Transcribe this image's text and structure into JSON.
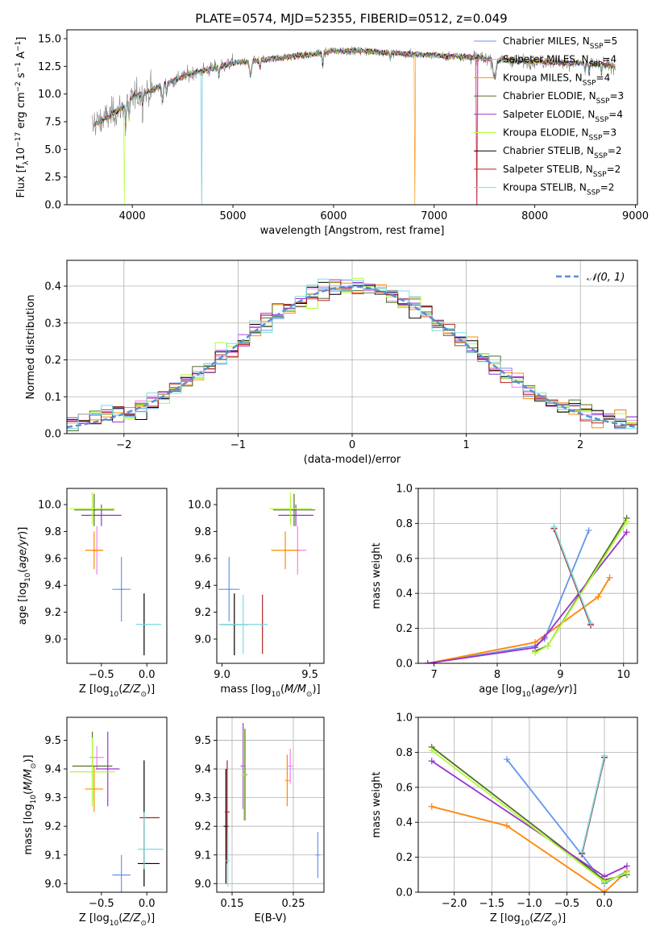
{
  "figure": {
    "suptitle": "PLATE=0574, MJD=52355, FIBERID=0512, z=0.049"
  },
  "colors": {
    "Chabrier MILES": "#6495ed",
    "Salpeter MILES": "#ee82ee",
    "Kroupa MILES": "#ff8c00",
    "Chabrier ELODIE": "#556b2f",
    "Salpeter ELODIE": "#9932cc",
    "Kroupa ELODIE": "#adff2f",
    "Chabrier STELIB": "#000000",
    "Salpeter STELIB": "#b22222",
    "Kroupa STELIB": "#7fdbe0",
    "data": "#808080",
    "grid": "#b0b0b0"
  },
  "chart_data": [
    {
      "id": "spectrum",
      "type": "line",
      "xlabel": "wavelength [Angstrom, rest frame]",
      "ylabel": "Flux [f_λ 10^-17 erg cm^-2 s^-1 A^-1]",
      "xlim": [
        3350,
        9020
      ],
      "ylim": [
        0,
        15.8
      ],
      "xticks": [
        4000,
        5000,
        6000,
        7000,
        8000,
        9000
      ],
      "yticks": [
        0.0,
        2.5,
        5.0,
        7.5,
        10.0,
        12.5,
        15.0
      ],
      "ytick_labels": [
        "0.0",
        "2.5",
        "5.0",
        "7.5",
        "10.0",
        "12.5",
        "15.0"
      ],
      "grid": false,
      "legend_position": "upper right",
      "data_range": [
        3600,
        8800
      ],
      "continuum_wavelength": [
        3600,
        3700,
        3800,
        3900,
        4000,
        4200,
        4400,
        4600,
        4800,
        5000,
        5200,
        5500,
        5800,
        6000,
        6300,
        6600,
        7000,
        7400,
        7800,
        8200,
        8600,
        8800
      ],
      "continuum_flux": [
        7.2,
        7.6,
        8.2,
        8.8,
        9.7,
        10.4,
        11.2,
        11.9,
        12.3,
        12.8,
        13.0,
        13.3,
        13.6,
        13.9,
        13.9,
        13.7,
        13.5,
        13.3,
        13.0,
        12.9,
        12.7,
        12.5
      ],
      "legend": [
        "Chabrier MILES, N_SSP=5",
        "Salpeter MILES, N_SSP=4",
        "Kroupa MILES, N_SSP=4",
        "Chabrier ELODIE, N_SSP=3",
        "Salpeter ELODIE, N_SSP=4",
        "Kroupa ELODIE, N_SSP=3",
        "Chabrier STELIB, N_SSP=2",
        "Salpeter STELIB, N_SSP=2",
        "Kroupa STELIB, N_SSP=2"
      ]
    },
    {
      "id": "residuals",
      "type": "histogram",
      "xlabel": "(data-model)/error",
      "ylabel": "Normed distribution",
      "xlim": [
        -2.5,
        2.5
      ],
      "ylim": [
        0,
        0.47
      ],
      "xticks": [
        -2,
        -1,
        0,
        1,
        2
      ],
      "xtick_labels": [
        "−2",
        "−1",
        "0",
        "1",
        "2"
      ],
      "yticks": [
        0.0,
        0.1,
        0.2,
        0.3,
        0.4
      ],
      "ytick_labels": [
        "0.0",
        "0.1",
        "0.2",
        "0.3",
        "0.4"
      ],
      "grid": true,
      "bin_width": 0.1,
      "legend": [
        "𝒩(0, 1)"
      ],
      "legend_position": "upper right"
    },
    {
      "id": "age-vs-Z",
      "type": "scatter",
      "xlabel": "Z [log10(Z/Z⊙)]",
      "ylabel": "age [log10(age/yr)]",
      "xlim": [
        -0.88,
        0.22
      ],
      "ylim": [
        8.82,
        10.12
      ],
      "xticks": [
        -0.5,
        0.0
      ],
      "xtick_labels": [
        "−0.5",
        "0.0"
      ],
      "yticks": [
        9.0,
        9.2,
        9.4,
        9.6,
        9.8,
        10.0
      ],
      "ytick_labels": [
        "9.0",
        "9.2",
        "9.4",
        "9.6",
        "9.8",
        "10.0"
      ],
      "grid": false,
      "points": [
        {
          "model": "Chabrier MILES",
          "x": -0.28,
          "y": 9.37,
          "xerr": 0.1,
          "yerr": 0.24
        },
        {
          "model": "Salpeter MILES",
          "x": -0.55,
          "y": 9.66,
          "xerr": 0.07,
          "yerr": 0.18
        },
        {
          "model": "Kroupa MILES",
          "x": -0.58,
          "y": 9.66,
          "xerr": 0.1,
          "yerr": 0.14
        },
        {
          "model": "Chabrier ELODIE",
          "x": -0.58,
          "y": 9.96,
          "xerr": 0.22,
          "yerr": 0.12
        },
        {
          "model": "Salpeter ELODIE",
          "x": -0.5,
          "y": 9.92,
          "xerr": 0.22,
          "yerr": 0.08
        },
        {
          "model": "Kroupa ELODIE",
          "x": -0.6,
          "y": 9.97,
          "xerr": 0.25,
          "yerr": 0.12
        },
        {
          "model": "Chabrier STELIB",
          "x": -0.03,
          "y": 9.11,
          "xerr": 0.0,
          "yerr": 0.23
        },
        {
          "model": "Salpeter STELIB",
          "x": -0.03,
          "y": 9.11,
          "xerr": 0.0,
          "yerr": 0.0
        },
        {
          "model": "Kroupa STELIB",
          "x": 0.02,
          "y": 9.11,
          "xerr": 0.14,
          "yerr": 0.0
        }
      ]
    },
    {
      "id": "age-vs-mass",
      "type": "scatter",
      "xlabel": "mass [log10(M/M⊙)]",
      "ylabel": "",
      "xlim": [
        8.97,
        9.58
      ],
      "ylim": [
        8.82,
        10.12
      ],
      "xticks": [
        9.0,
        9.5
      ],
      "xtick_labels": [
        "9.0",
        "9.5"
      ],
      "yticks": [
        9.0,
        9.2,
        9.4,
        9.6,
        9.8,
        10.0
      ],
      "ytick_labels": [
        "9.0",
        "9.2",
        "9.4",
        "9.6",
        "9.8",
        "10.0"
      ],
      "grid": false,
      "points": [
        {
          "model": "Chabrier MILES",
          "x": 9.04,
          "y": 9.37,
          "xerr": 0.06,
          "yerr": 0.24
        },
        {
          "model": "Salpeter MILES",
          "x": 9.43,
          "y": 9.66,
          "xerr": 0.05,
          "yerr": 0.18
        },
        {
          "model": "Kroupa MILES",
          "x": 9.36,
          "y": 9.66,
          "xerr": 0.08,
          "yerr": 0.14
        },
        {
          "model": "Chabrier ELODIE",
          "x": 9.41,
          "y": 9.96,
          "xerr": 0.12,
          "yerr": 0.12
        },
        {
          "model": "Salpeter ELODIE",
          "x": 9.42,
          "y": 9.92,
          "xerr": 0.1,
          "yerr": 0.08
        },
        {
          "model": "Kroupa ELODIE",
          "x": 9.39,
          "y": 9.97,
          "xerr": 0.12,
          "yerr": 0.12
        },
        {
          "model": "Chabrier STELIB",
          "x": 9.07,
          "y": 9.11,
          "xerr": 0.08,
          "yerr": 0.23
        },
        {
          "model": "Salpeter STELIB",
          "x": 9.23,
          "y": 9.11,
          "xerr": 0.0,
          "yerr": 0.22
        },
        {
          "model": "Kroupa STELIB",
          "x": 9.12,
          "y": 9.11,
          "xerr": 0.14,
          "yerr": 0.22
        }
      ]
    },
    {
      "id": "weight-vs-age",
      "type": "line",
      "xlabel": "age [log10(age/yr)]",
      "ylabel": "mass weight",
      "xlim": [
        6.75,
        10.22
      ],
      "ylim": [
        0,
        1.0
      ],
      "xticks": [
        7,
        8,
        9,
        10
      ],
      "xtick_labels": [
        "7",
        "8",
        "9",
        "10"
      ],
      "yticks": [
        0.0,
        0.2,
        0.4,
        0.6,
        0.8,
        1.0
      ],
      "ytick_labels": [
        "0.0",
        "0.2",
        "0.4",
        "0.6",
        "0.8",
        "1.0"
      ],
      "grid": true,
      "series": [
        {
          "model": "Chabrier MILES",
          "x": [
            6.9,
            8.6,
            8.75,
            9.45
          ],
          "y": [
            0.0,
            0.1,
            0.14,
            0.76
          ]
        },
        {
          "model": "Salpeter MILES",
          "x": [
            6.9,
            8.6,
            9.6,
            9.78
          ],
          "y": [
            0.0,
            0.12,
            0.38,
            0.49
          ]
        },
        {
          "model": "Kroupa MILES",
          "x": [
            6.9,
            8.6,
            9.6,
            9.78
          ],
          "y": [
            0.0,
            0.12,
            0.38,
            0.49
          ]
        },
        {
          "model": "Chabrier ELODIE",
          "x": [
            8.6,
            8.8,
            10.05
          ],
          "y": [
            0.07,
            0.1,
            0.83
          ]
        },
        {
          "model": "Salpeter ELODIE",
          "x": [
            6.9,
            8.6,
            8.75,
            10.05
          ],
          "y": [
            0.0,
            0.09,
            0.15,
            0.75
          ]
        },
        {
          "model": "Kroupa ELODIE",
          "x": [
            8.6,
            8.8,
            10.05
          ],
          "y": [
            0.06,
            0.1,
            0.81
          ]
        },
        {
          "model": "Chabrier STELIB",
          "x": [
            8.9,
            9.48
          ],
          "y": [
            0.77,
            0.22
          ]
        },
        {
          "model": "Salpeter STELIB",
          "x": [
            8.9,
            9.48
          ],
          "y": [
            0.77,
            0.22
          ]
        },
        {
          "model": "Kroupa STELIB",
          "x": [
            8.9,
            9.48
          ],
          "y": [
            0.78,
            0.23
          ]
        }
      ]
    },
    {
      "id": "mass-vs-Z",
      "type": "scatter",
      "xlabel": "Z [log10(Z/Z⊙)]",
      "ylabel": "mass [log10(M/M⊙)]",
      "xlim": [
        -0.88,
        0.22
      ],
      "ylim": [
        8.97,
        9.58
      ],
      "xticks": [
        -0.5,
        0.0
      ],
      "xtick_labels": [
        "−0.5",
        "0.0"
      ],
      "yticks": [
        9.0,
        9.1,
        9.2,
        9.3,
        9.4,
        9.5
      ],
      "ytick_labels": [
        "9.0",
        "9.1",
        "9.2",
        "9.3",
        "9.4",
        "9.5"
      ],
      "grid": false,
      "points": [
        {
          "model": "Chabrier MILES",
          "x": -0.28,
          "y": 9.03,
          "xerr": 0.1,
          "yerr": 0.07
        },
        {
          "model": "Salpeter MILES",
          "x": -0.55,
          "y": 9.44,
          "xerr": 0.08,
          "yerr": 0.04
        },
        {
          "model": "Kroupa MILES",
          "x": -0.58,
          "y": 9.33,
          "xerr": 0.1,
          "yerr": 0.08
        },
        {
          "model": "Chabrier ELODIE",
          "x": -0.6,
          "y": 9.41,
          "xerr": 0.22,
          "yerr": 0.12
        },
        {
          "model": "Salpeter ELODIE",
          "x": -0.43,
          "y": 9.4,
          "xerr": 0.13,
          "yerr": 0.13
        },
        {
          "model": "Kroupa ELODIE",
          "x": -0.6,
          "y": 9.39,
          "xerr": 0.25,
          "yerr": 0.12
        },
        {
          "model": "Chabrier STELIB",
          "x": 0.02,
          "y": 9.07,
          "xerr": 0.12,
          "yerr": 0.0
        },
        {
          "model": "Salpeter STELIB",
          "x": 0.03,
          "y": 9.23,
          "xerr": 0.11,
          "yerr": 0.0
        },
        {
          "model": "Kroupa STELIB",
          "x": 0.04,
          "y": 9.12,
          "xerr": 0.14,
          "yerr": 0.0
        }
      ],
      "vlines": [
        {
          "model": "Chabrier STELIB",
          "x": -0.03,
          "y0": 8.99,
          "y1": 9.43
        },
        {
          "model": "Kroupa STELIB",
          "x": -0.03,
          "y0": 9.05,
          "y1": 9.25
        }
      ]
    },
    {
      "id": "mass-vs-EBV",
      "type": "scatter",
      "xlabel": "E(B-V)",
      "ylabel": "",
      "xlim": [
        0.125,
        0.3
      ],
      "ylim": [
        8.97,
        9.58
      ],
      "xticks": [
        0.15,
        0.25
      ],
      "xtick_labels": [
        "0.15",
        "0.25"
      ],
      "yticks": [
        9.0,
        9.1,
        9.2,
        9.3,
        9.4,
        9.5
      ],
      "ytick_labels": [
        "9.0",
        "9.1",
        "9.2",
        "9.3",
        "9.4",
        "9.5"
      ],
      "grid": true,
      "points": [
        {
          "model": "Chabrier MILES",
          "x": 0.29,
          "y": 9.1,
          "yerr": 0.08
        },
        {
          "model": "Salpeter MILES",
          "x": 0.245,
          "y": 9.41,
          "yerr": 0.06
        },
        {
          "model": "Kroupa MILES",
          "x": 0.24,
          "y": 9.36,
          "yerr": 0.09
        },
        {
          "model": "Chabrier ELODIE",
          "x": 0.171,
          "y": 9.38,
          "yerr": 0.16
        },
        {
          "model": "Salpeter ELODIE",
          "x": 0.168,
          "y": 9.41,
          "yerr": 0.15
        },
        {
          "model": "Kroupa ELODIE",
          "x": 0.169,
          "y": 9.38,
          "yerr": 0.16
        },
        {
          "model": "Chabrier STELIB",
          "x": 0.14,
          "y": 9.2,
          "yerr": 0.2
        },
        {
          "model": "Salpeter STELIB",
          "x": 0.142,
          "y": 9.25,
          "yerr": 0.18
        },
        {
          "model": "Kroupa STELIB",
          "x": 0.143,
          "y": 9.08,
          "yerr": 0.09
        }
      ]
    },
    {
      "id": "weight-vs-Z",
      "type": "line",
      "xlabel": "Z [log10(Z/Z⊙)]",
      "ylabel": "mass weight",
      "xlim": [
        -2.48,
        0.44
      ],
      "ylim": [
        0,
        1.0
      ],
      "xticks": [
        -2.0,
        -1.5,
        -1.0,
        -0.5,
        0.0
      ],
      "xtick_labels": [
        "−2.0",
        "−1.5",
        "−1.0",
        "−0.5",
        "0.0"
      ],
      "yticks": [
        0.0,
        0.2,
        0.4,
        0.6,
        0.8,
        1.0
      ],
      "ytick_labels": [
        "0.0",
        "0.2",
        "0.4",
        "0.6",
        "0.8",
        "1.0"
      ],
      "grid": true,
      "series": [
        {
          "model": "Chabrier MILES",
          "x": [
            -1.3,
            0.0,
            0.3
          ],
          "y": [
            0.76,
            0.05,
            0.12
          ]
        },
        {
          "model": "Salpeter MILES",
          "x": [
            -2.3,
            -1.3,
            0.0,
            0.3
          ],
          "y": [
            0.49,
            0.38,
            0.0,
            0.12
          ]
        },
        {
          "model": "Kroupa MILES",
          "x": [
            -2.3,
            -1.3,
            0.0,
            0.3
          ],
          "y": [
            0.49,
            0.38,
            0.0,
            0.12
          ]
        },
        {
          "model": "Chabrier ELODIE",
          "x": [
            -2.3,
            0.0,
            0.3
          ],
          "y": [
            0.83,
            0.07,
            0.1
          ]
        },
        {
          "model": "Salpeter ELODIE",
          "x": [
            -2.3,
            0.0,
            0.3
          ],
          "y": [
            0.75,
            0.09,
            0.15
          ]
        },
        {
          "model": "Kroupa ELODIE",
          "x": [
            -2.3,
            0.0,
            0.3
          ],
          "y": [
            0.81,
            0.06,
            0.11
          ]
        },
        {
          "model": "Chabrier STELIB",
          "x": [
            -0.3,
            0.0
          ],
          "y": [
            0.22,
            0.77
          ]
        },
        {
          "model": "Salpeter STELIB",
          "x": [
            -0.3,
            0.0
          ],
          "y": [
            0.22,
            0.77
          ]
        },
        {
          "model": "Kroupa STELIB",
          "x": [
            -0.3,
            0.0
          ],
          "y": [
            0.23,
            0.78
          ]
        }
      ]
    }
  ]
}
